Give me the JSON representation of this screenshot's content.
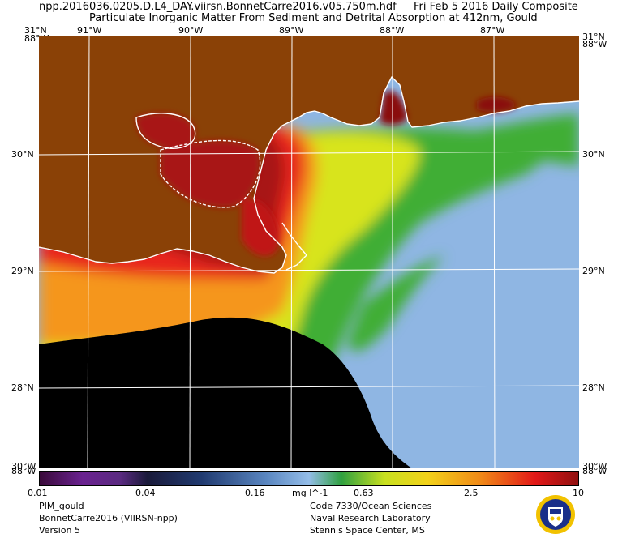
{
  "header": {
    "filename": "npp.2016036.0205.D.L4_DAY.viirsn.BonnetCarre2016.v05.750m.hdf",
    "date": "Fri Feb  5 2016 Daily Composite",
    "product_title": "Particulate Inorganic Matter From Sediment and Detrital Absorption at 412nm, Gould"
  },
  "map": {
    "lon_labels": [
      "91°W",
      "90°W",
      "89°W",
      "88°W",
      "87°W"
    ],
    "lat_labels": [
      "30°N",
      "29°N",
      "28°N"
    ],
    "corner_labels": {
      "top_left_lat": "31°N",
      "top_left_lon": "88°W",
      "top_right_lat": "31°N",
      "top_right_lon": "88°W",
      "bottom_left_lat": "30°W",
      "bottom_left_lon": "88°W",
      "bottom_right_lat": "30°W",
      "bottom_right_lon": "88°W"
    },
    "colors": {
      "land": "#8a4106",
      "no_data": "#000000",
      "clear_water": "#8fb6e3",
      "coastline": "#ffffff",
      "grid": "#ffffff"
    }
  },
  "colorbar": {
    "tick_labels": [
      "0.01",
      "0.04",
      "0.16",
      "0.63",
      "2.5",
      "10"
    ],
    "units": "mg l^-1",
    "scale": "log",
    "range": [
      0.01,
      10
    ]
  },
  "footer": {
    "left": [
      "PIM_gould",
      "BonnetCarre2016 (VIIRSN-npp)",
      "Version 5"
    ],
    "right": [
      "Code 7330/Ocean Sciences",
      "Naval Research Laboratory",
      "Stennis Space Center, MS"
    ]
  },
  "logo": {
    "name": "nrl-seal-icon"
  }
}
